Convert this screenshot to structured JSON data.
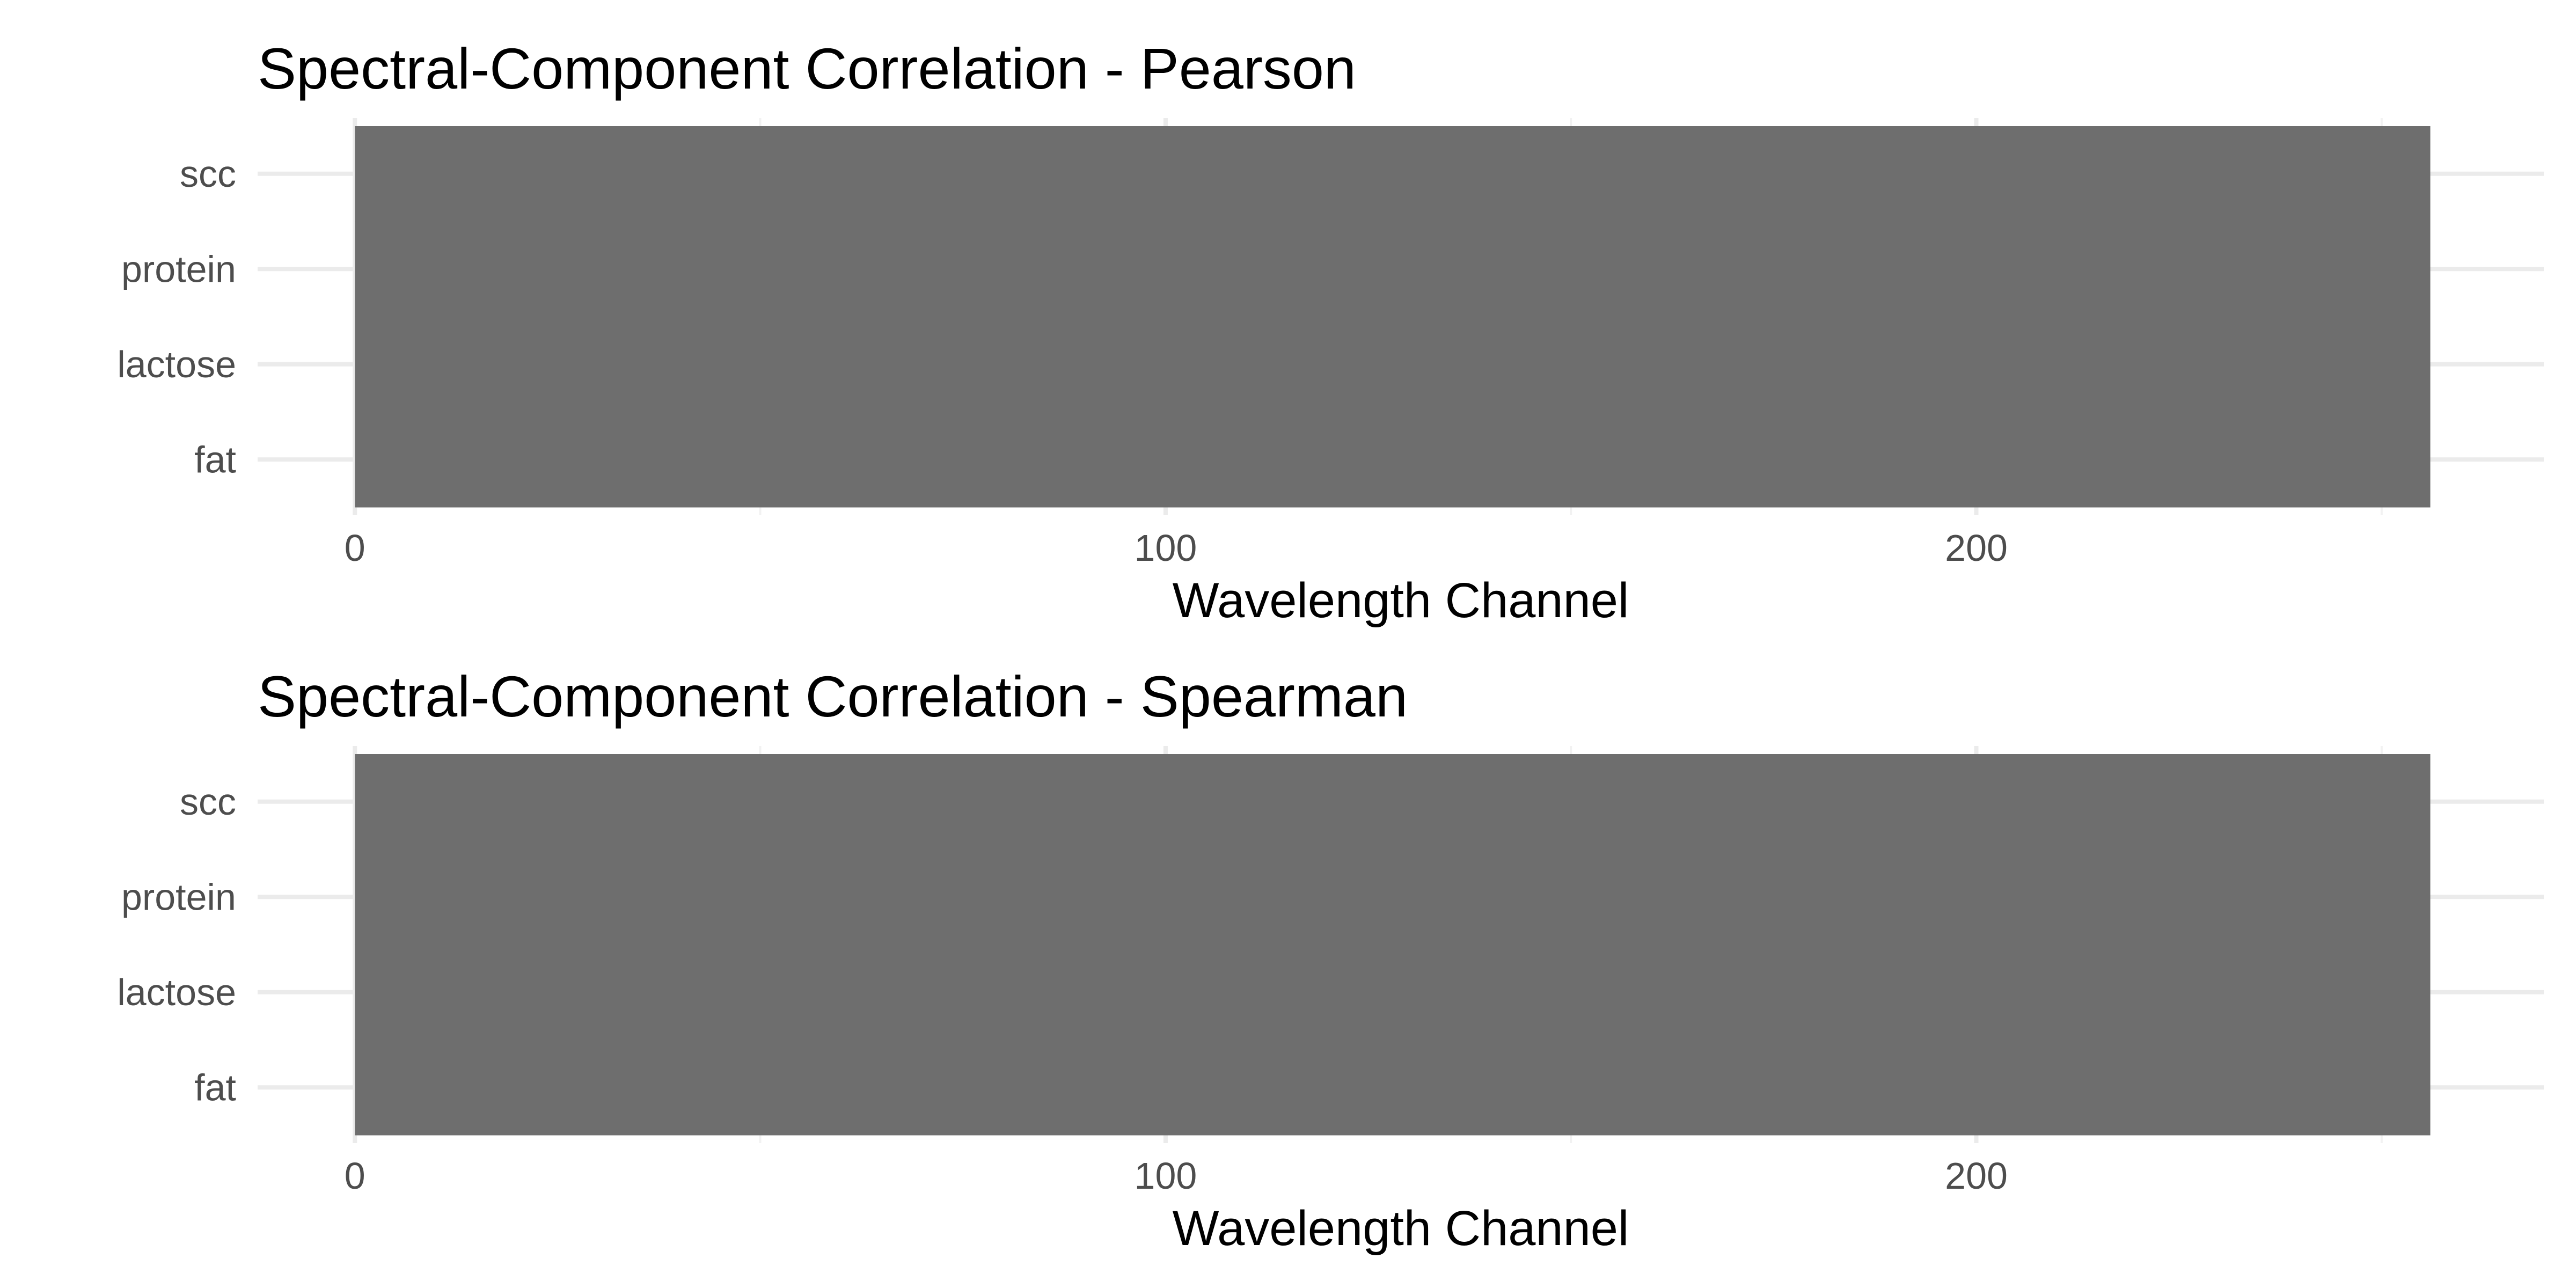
{
  "chart_data": [
    {
      "type": "heatmap",
      "title": "Spectral-Component Correlation - Pearson",
      "xlabel": "Wavelength Channel",
      "ylabel": "",
      "x_range": [
        0,
        256
      ],
      "xlim": [
        -12,
        270
      ],
      "x_ticks": [
        0,
        100,
        200
      ],
      "x_tick_labels": [
        "0",
        "100",
        "200"
      ],
      "x_minor_ticks": [
        50,
        150,
        250
      ],
      "categories": [
        "fat",
        "lactose",
        "protein",
        "scc"
      ],
      "fill_color": "#6e6e6e",
      "grid": true,
      "legend": "none"
    },
    {
      "type": "heatmap",
      "title": "Spectral-Component Correlation - Spearman",
      "xlabel": "Wavelength Channel",
      "ylabel": "",
      "x_range": [
        0,
        256
      ],
      "xlim": [
        -12,
        270
      ],
      "x_ticks": [
        0,
        100,
        200
      ],
      "x_tick_labels": [
        "0",
        "100",
        "200"
      ],
      "x_minor_ticks": [
        50,
        150,
        250
      ],
      "categories": [
        "fat",
        "lactose",
        "protein",
        "scc"
      ],
      "fill_color": "#6e6e6e",
      "grid": true,
      "legend": "none"
    }
  ]
}
